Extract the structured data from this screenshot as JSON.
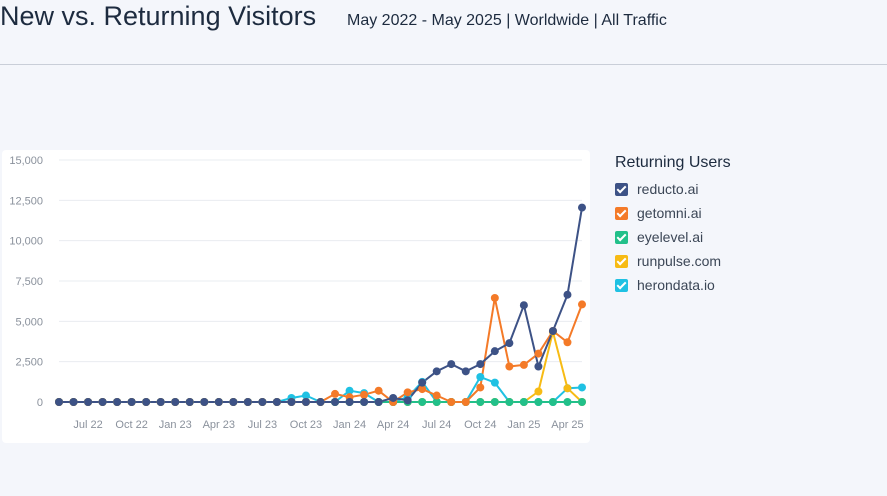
{
  "header": {
    "title": "New vs. Returning Visitors",
    "subtitle": "May 2022 - May 2025 | Worldwide | All Traffic"
  },
  "legend": {
    "title": "Returning Users",
    "items": [
      {
        "label": "reducto.ai",
        "color": "#3d5286"
      },
      {
        "label": "getomni.ai",
        "color": "#f47a28"
      },
      {
        "label": "eyelevel.ai",
        "color": "#22c08a"
      },
      {
        "label": "runpulse.com",
        "color": "#f7bb14"
      },
      {
        "label": "herondata.io",
        "color": "#1fc1e3"
      }
    ]
  },
  "chart_data": {
    "type": "line",
    "x": [
      "May 22",
      "Jun 22",
      "Jul 22",
      "Aug 22",
      "Sep 22",
      "Oct 22",
      "Nov 22",
      "Dec 22",
      "Jan 23",
      "Feb 23",
      "Mar 23",
      "Apr 23",
      "May 23",
      "Jun 23",
      "Jul 23",
      "Aug 23",
      "Sep 23",
      "Oct 23",
      "Nov 23",
      "Dec 23",
      "Jan 24",
      "Feb 24",
      "Mar 24",
      "Apr 24",
      "May 24",
      "Jun 24",
      "Jul 24",
      "Aug 24",
      "Sep 24",
      "Oct 24",
      "Nov 24",
      "Dec 24",
      "Jan 25",
      "Feb 25",
      "Mar 25",
      "Apr 25",
      "May 25"
    ],
    "xtick_labels": [
      {
        "index": 2,
        "label": "Jul 22"
      },
      {
        "index": 5,
        "label": "Oct 22"
      },
      {
        "index": 8,
        "label": "Jan 23"
      },
      {
        "index": 11,
        "label": "Apr 23"
      },
      {
        "index": 14,
        "label": "Jul 23"
      },
      {
        "index": 17,
        "label": "Oct 23"
      },
      {
        "index": 20,
        "label": "Jan 24"
      },
      {
        "index": 23,
        "label": "Apr 24"
      },
      {
        "index": 26,
        "label": "Jul 24"
      },
      {
        "index": 29,
        "label": "Oct 24"
      },
      {
        "index": 32,
        "label": "Jan 25"
      },
      {
        "index": 35,
        "label": "Apr 25"
      }
    ],
    "yticks": [
      0,
      2500,
      5000,
      7500,
      10000,
      12500,
      15000
    ],
    "ytick_labels": [
      "0",
      "2,500",
      "5,000",
      "7,500",
      "10,000",
      "12,500",
      "15,000"
    ],
    "ylim": [
      0,
      15000
    ],
    "grid": true,
    "legend_position": "right",
    "series": [
      {
        "name": "reducto.ai",
        "color": "#3d5286",
        "values": [
          0,
          0,
          0,
          0,
          0,
          0,
          0,
          0,
          0,
          0,
          0,
          0,
          0,
          0,
          0,
          0,
          0,
          0,
          0,
          0,
          0,
          0,
          0,
          250,
          100,
          1200,
          1900,
          2350,
          1900,
          2350,
          3150,
          3650,
          6000,
          2200,
          4400,
          6650,
          12050
        ]
      },
      {
        "name": "getomni.ai",
        "color": "#f47a28",
        "values": [
          0,
          0,
          0,
          0,
          0,
          0,
          0,
          0,
          0,
          0,
          0,
          0,
          0,
          0,
          0,
          0,
          0,
          0,
          0,
          500,
          300,
          450,
          700,
          0,
          600,
          800,
          400,
          0,
          0,
          900,
          6450,
          2200,
          2300,
          3000,
          4400,
          3700,
          6050
        ]
      },
      {
        "name": "eyelevel.ai",
        "color": "#22c08a",
        "values": [
          0,
          0,
          0,
          0,
          0,
          0,
          0,
          0,
          0,
          0,
          0,
          0,
          0,
          0,
          0,
          0,
          0,
          0,
          0,
          0,
          0,
          0,
          0,
          0,
          0,
          0,
          0,
          0,
          0,
          0,
          0,
          0,
          0,
          0,
          0,
          0,
          0
        ]
      },
      {
        "name": "runpulse.com",
        "color": "#f7bb14",
        "values": [
          0,
          0,
          0,
          0,
          0,
          0,
          0,
          0,
          0,
          0,
          0,
          0,
          0,
          0,
          0,
          0,
          0,
          0,
          0,
          0,
          0,
          0,
          0,
          0,
          0,
          0,
          0,
          0,
          0,
          0,
          0,
          0,
          0,
          650,
          4350,
          850,
          0
        ]
      },
      {
        "name": "herondata.io",
        "color": "#1fc1e3",
        "values": [
          0,
          0,
          0,
          0,
          0,
          0,
          0,
          0,
          0,
          0,
          0,
          0,
          0,
          0,
          0,
          0,
          250,
          400,
          0,
          0,
          700,
          550,
          0,
          0,
          300,
          1250,
          0,
          0,
          0,
          1550,
          1200,
          0,
          0,
          0,
          0,
          850,
          900
        ]
      }
    ]
  }
}
